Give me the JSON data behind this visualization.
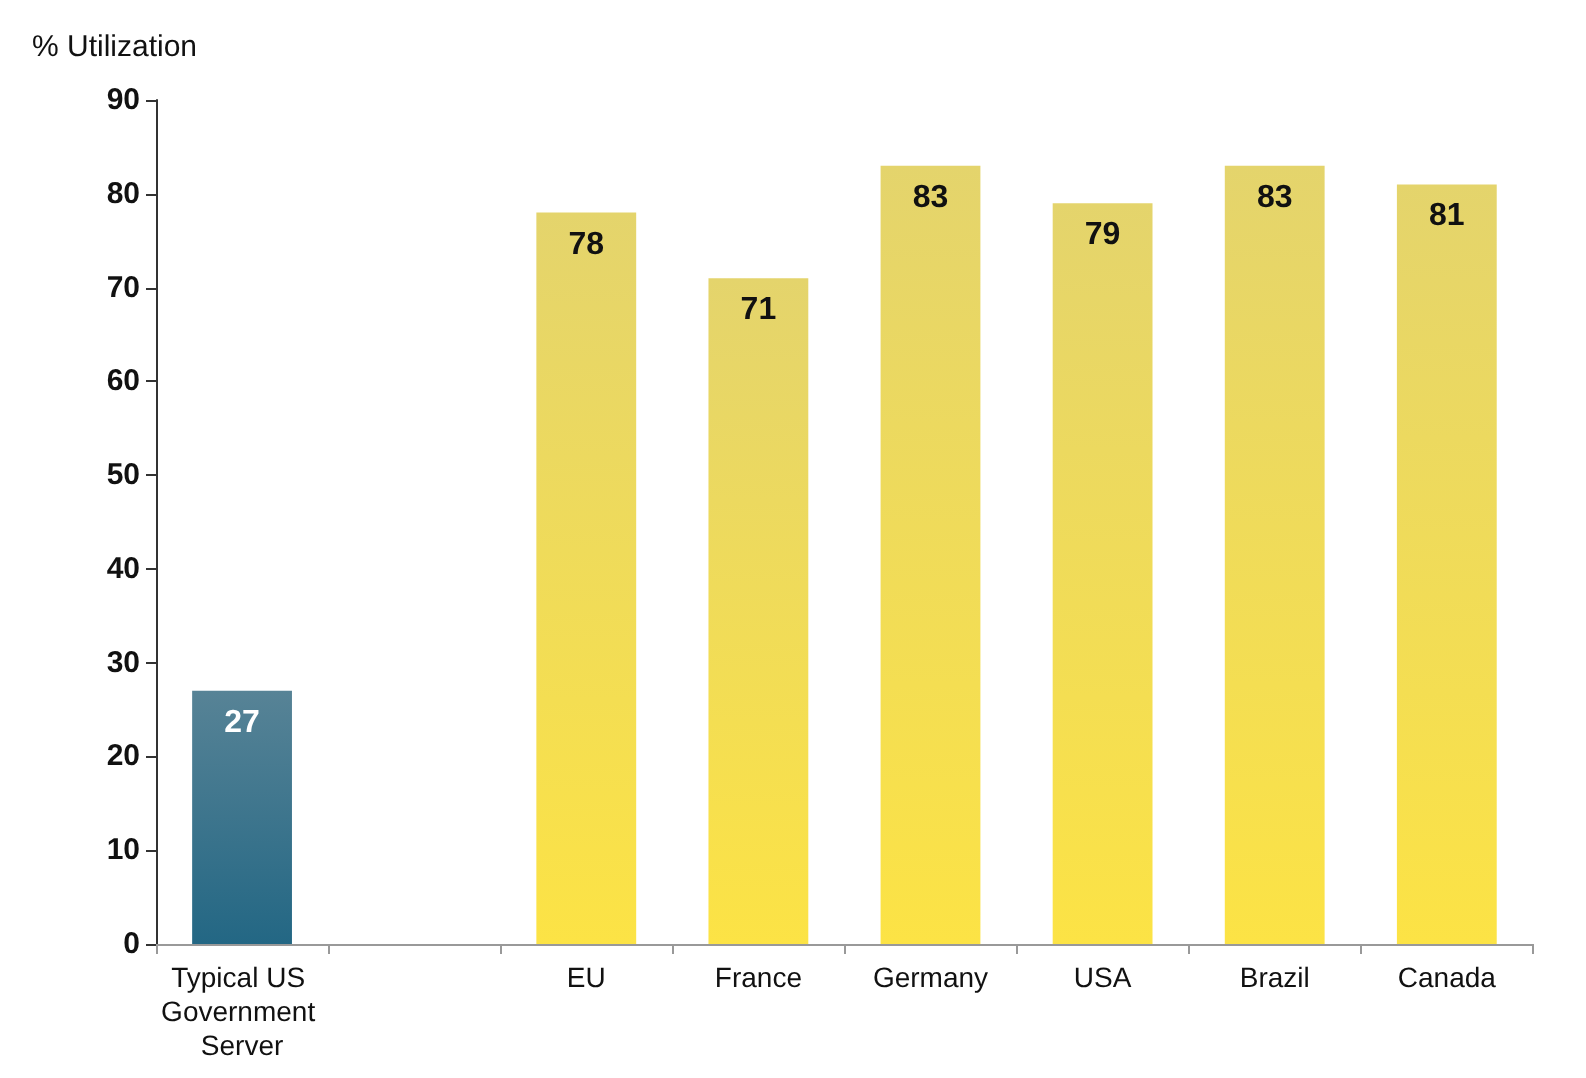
{
  "chart_data": {
    "type": "bar",
    "ylabel": "% Utilization",
    "categories": [
      "Typical US Government Server",
      null,
      "EU",
      "France",
      "Germany",
      "USA",
      "Brazil",
      "Canada"
    ],
    "values": [
      27,
      null,
      78,
      71,
      83,
      79,
      83,
      81
    ],
    "colors": [
      "#1f5a73",
      null,
      "#dcc63c",
      "#dcc63c",
      "#dcc63c",
      "#dcc63c",
      "#dcc63c",
      "#dcc63c"
    ],
    "ylim": [
      0,
      90
    ],
    "yticks": [
      0,
      10,
      20,
      30,
      40,
      50,
      60,
      70,
      80,
      90
    ],
    "grid": false,
    "data_labels": true
  }
}
